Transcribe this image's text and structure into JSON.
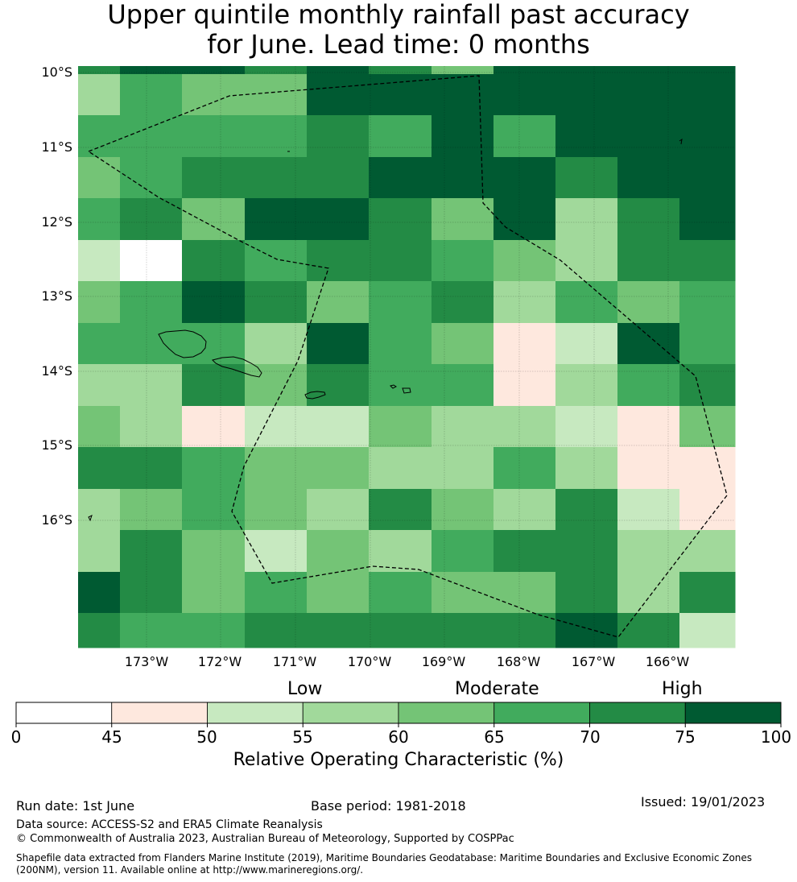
{
  "title": {
    "line1": "Upper quintile monthly rainfall past accuracy",
    "line2": "for June. Lead time: 0 months"
  },
  "map": {
    "lat_labels": [
      "10°S",
      "11°S",
      "12°S",
      "13°S",
      "14°S",
      "15°S",
      "16°S"
    ],
    "lon_labels": [
      "173°W",
      "172°W",
      "171°W",
      "170°W",
      "169°W",
      "168°W",
      "167°W",
      "166°W"
    ],
    "category_colors": [
      "#ffffff",
      "#fee8de",
      "#c7e9c0",
      "#a1d99b",
      "#74c476",
      "#41ab5d",
      "#238b45",
      "#005a32"
    ],
    "grid_rows": [
      [
        6,
        7,
        7,
        6,
        7,
        6,
        4,
        7,
        7,
        7,
        7
      ],
      [
        3,
        5,
        4,
        4,
        7,
        7,
        7,
        7,
        7,
        7,
        7
      ],
      [
        5,
        5,
        5,
        5,
        6,
        5,
        7,
        5,
        7,
        7,
        7
      ],
      [
        4,
        5,
        6,
        6,
        6,
        7,
        7,
        7,
        6,
        7,
        7
      ],
      [
        5,
        6,
        4,
        7,
        7,
        6,
        4,
        7,
        3,
        6,
        7
      ],
      [
        2,
        0,
        6,
        5,
        6,
        6,
        5,
        4,
        3,
        6,
        6
      ],
      [
        4,
        5,
        7,
        6,
        4,
        5,
        6,
        3,
        5,
        4,
        5
      ],
      [
        5,
        5,
        5,
        3,
        7,
        5,
        4,
        1,
        2,
        7,
        5
      ],
      [
        3,
        3,
        6,
        4,
        6,
        5,
        5,
        1,
        3,
        5,
        6
      ],
      [
        4,
        3,
        1,
        2,
        2,
        4,
        3,
        3,
        2,
        1,
        4
      ],
      [
        6,
        6,
        5,
        4,
        4,
        3,
        3,
        5,
        3,
        1,
        1
      ],
      [
        3,
        4,
        5,
        4,
        3,
        6,
        4,
        3,
        6,
        2,
        1
      ],
      [
        3,
        6,
        4,
        2,
        4,
        3,
        5,
        6,
        6,
        3,
        3
      ],
      [
        7,
        6,
        4,
        5,
        4,
        5,
        4,
        4,
        6,
        3,
        6
      ],
      [
        6,
        5,
        5,
        6,
        6,
        6,
        6,
        6,
        7,
        6,
        2
      ]
    ]
  },
  "colorbar": {
    "categories": [
      "Low",
      "Moderate",
      "High"
    ],
    "ticks": [
      "0",
      "45",
      "50",
      "55",
      "60",
      "65",
      "70",
      "75",
      "100"
    ],
    "title": "Relative Operating Characteristic (%)"
  },
  "footer": {
    "run_date": "Run date: 1st June",
    "base_period": "Base period: 1981-2018",
    "issued": "Issued: 19/01/2023",
    "data_source": "Data source: ACCESS-S2 and ERA5 Climate Reanalysis",
    "copyright": "© Commonwealth of Australia 2023, Australian Bureau of Meteorology, Supported by COSPPac",
    "shapefile": "Shapefile data extracted from Flanders Marine Institute (2019), Maritime Boundaries Geodatabase: Maritime Boundaries and Exclusive Economic Zones (200NM), version 11. Available online at http://www.marineregions.org/."
  }
}
